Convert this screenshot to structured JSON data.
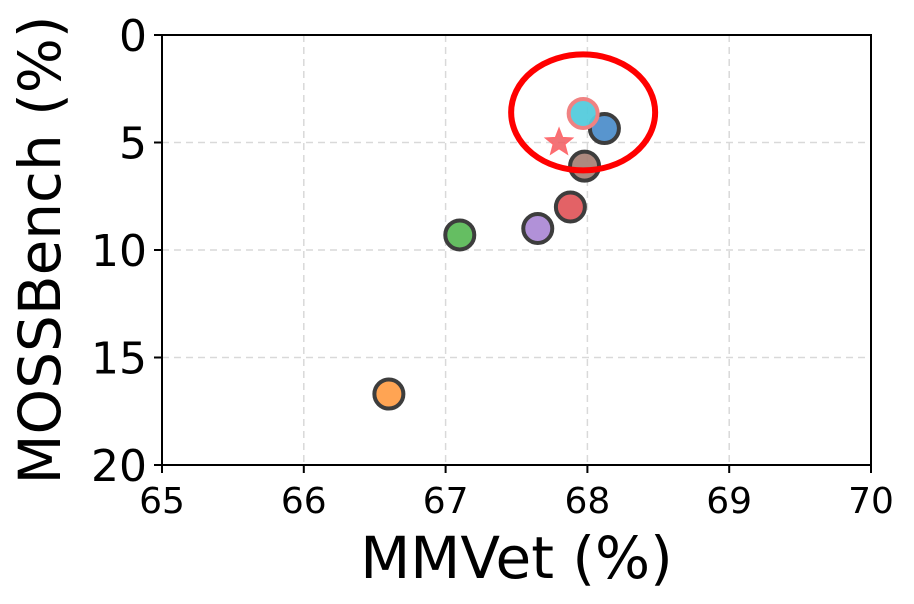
{
  "chart_data": {
    "type": "scatter",
    "xlabel": "MMVet (%)",
    "ylabel": "MOSSBench (%)",
    "xlim": [
      65,
      70
    ],
    "ylim": [
      20,
      0
    ],
    "y_inverted": true,
    "xticks": [
      "65",
      "66",
      "67",
      "68",
      "69",
      "70"
    ],
    "yticks": [
      "0",
      "5",
      "10",
      "15",
      "20"
    ],
    "grid": true,
    "grid_style": "dashed",
    "points": [
      {
        "x": 66.6,
        "y": 16.7,
        "color": "#ff9f4a",
        "marker": "circle"
      },
      {
        "x": 67.1,
        "y": 9.3,
        "color": "#5dbb5a",
        "marker": "circle"
      },
      {
        "x": 67.65,
        "y": 9.0,
        "color": "#ad8bd6",
        "marker": "circle"
      },
      {
        "x": 67.88,
        "y": 8.0,
        "color": "#e15a5e",
        "marker": "circle"
      },
      {
        "x": 67.98,
        "y": 6.1,
        "color": "#a98378",
        "marker": "circle"
      },
      {
        "x": 68.12,
        "y": 4.35,
        "color": "#4f8fcb",
        "marker": "circle"
      },
      {
        "x": 67.97,
        "y": 3.65,
        "color": "#54cbdc",
        "marker": "circle",
        "edge": "#f08282"
      },
      {
        "x": 67.8,
        "y": 5.0,
        "color": "#f05a5f",
        "marker": "star"
      }
    ],
    "highlight": {
      "shape": "ellipse",
      "color": "#ff0000",
      "cx": 67.97,
      "cy": 3.6
    }
  }
}
